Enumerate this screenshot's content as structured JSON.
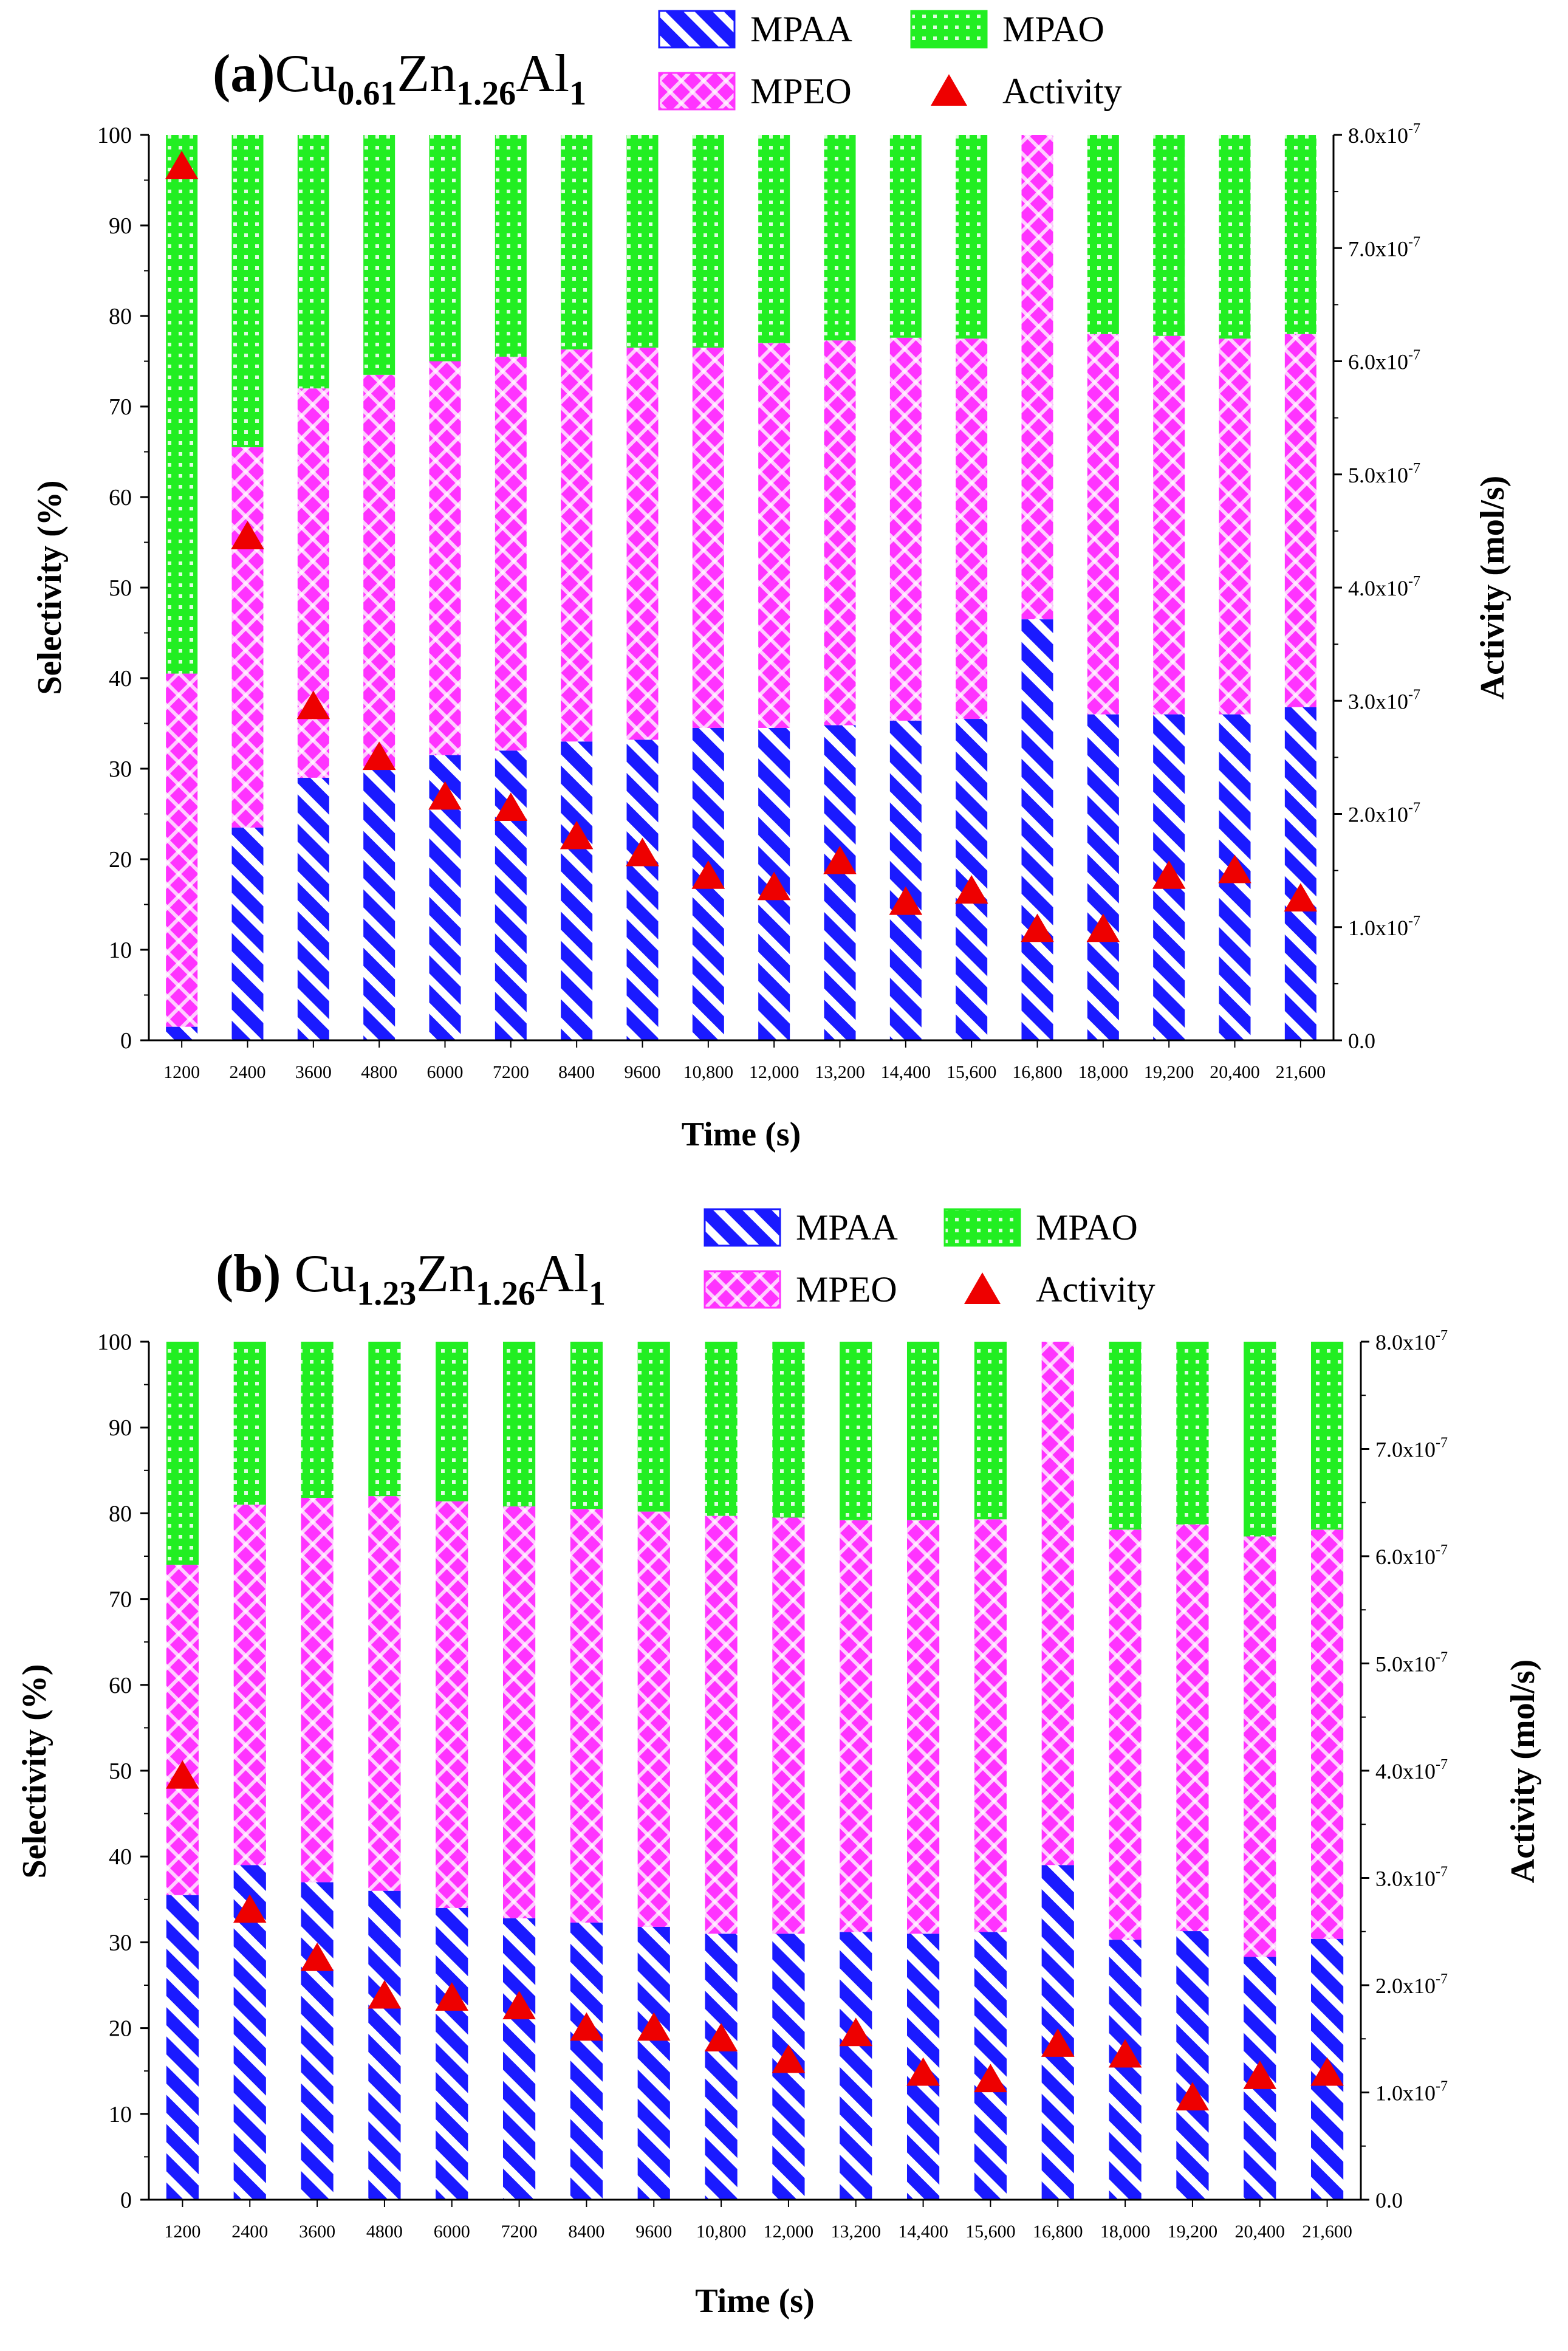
{
  "chart_data": [
    {
      "panel": "(a)",
      "title_parts": [
        {
          "t": "(a)",
          "sub": false,
          "bold": true
        },
        {
          "t": "Cu",
          "sub": false
        },
        {
          "t": "0.61",
          "sub": true
        },
        {
          "t": "Zn",
          "sub": false
        },
        {
          "t": "1.26",
          "sub": true
        },
        {
          "t": "Al",
          "sub": false
        },
        {
          "t": "1",
          "sub": true
        }
      ],
      "type": "bar",
      "stacked": true,
      "xlabel": "Time (s)",
      "ylabel": "Selectivity (%)",
      "y2label": "Activity (mol/s)",
      "ylim": [
        0,
        100
      ],
      "y2lim": [
        0,
        8e-07
      ],
      "y_ticks": [
        "0",
        "10",
        "20",
        "30",
        "40",
        "50",
        "60",
        "70",
        "80",
        "90",
        "100"
      ],
      "y2_ticks": [
        {
          "m": "0.0",
          "e": ""
        },
        {
          "m": "1.0x10",
          "e": "-7"
        },
        {
          "m": "2.0x10",
          "e": "-7"
        },
        {
          "m": "3.0x10",
          "e": "-7"
        },
        {
          "m": "4.0x10",
          "e": "-7"
        },
        {
          "m": "5.0x10",
          "e": "-7"
        },
        {
          "m": "6.0x10",
          "e": "-7"
        },
        {
          "m": "7.0x10",
          "e": "-7"
        },
        {
          "m": "8.0x10",
          "e": "-7"
        }
      ],
      "categories": [
        "1200",
        "2400",
        "3600",
        "4800",
        "6000",
        "7200",
        "8400",
        "9600",
        "10,800",
        "12,000",
        "13,200",
        "14,400",
        "15,600",
        "16,800",
        "18,000",
        "19,200",
        "20,400",
        "21,600"
      ],
      "series": [
        {
          "name": "MPAA",
          "color": "#1a1aff",
          "pattern": "hatch",
          "values": [
            1.5,
            23.5,
            29,
            30,
            31.5,
            32,
            33,
            33.2,
            34.5,
            34.5,
            34.8,
            35.3,
            35.5,
            46.5,
            36,
            36,
            36,
            36.8
          ]
        },
        {
          "name": "MPEO",
          "color": "#ff33ff",
          "pattern": "crosshatch",
          "values": [
            39,
            42,
            43,
            43.5,
            43.5,
            43.5,
            43.3,
            43.3,
            42,
            42.5,
            42.5,
            42.3,
            42,
            53.5,
            42,
            41.8,
            41.5,
            41.2
          ]
        },
        {
          "name": "MPAO",
          "color": "#22ee22",
          "pattern": "dots",
          "values": [
            59.5,
            34.5,
            28,
            26.5,
            25,
            24.5,
            23.7,
            23.5,
            23.5,
            23,
            22.7,
            22.4,
            22.5,
            0,
            22,
            22.2,
            22.5,
            22
          ]
        }
      ],
      "activity": {
        "name": "Activity",
        "color": "#ee0000",
        "values": [
          7.72e-07,
          4.45e-07,
          2.95e-07,
          2.5e-07,
          2.15e-07,
          2.05e-07,
          1.8e-07,
          1.65e-07,
          1.45e-07,
          1.35e-07,
          1.58e-07,
          1.22e-07,
          1.32e-07,
          9.8e-08,
          9.8e-08,
          1.45e-07,
          1.5e-07,
          1.25e-07
        ]
      },
      "legend": {
        "placement": "top-center",
        "entries": [
          "MPAA",
          "MPAO",
          "MPEO",
          "Activity"
        ]
      }
    },
    {
      "panel": "(b)",
      "title_parts": [
        {
          "t": "(b) ",
          "sub": false,
          "bold": true
        },
        {
          "t": "Cu",
          "sub": false
        },
        {
          "t": "1.23",
          "sub": true
        },
        {
          "t": "Zn",
          "sub": false
        },
        {
          "t": "1.26",
          "sub": true
        },
        {
          "t": "Al",
          "sub": false
        },
        {
          "t": "1",
          "sub": true
        }
      ],
      "type": "bar",
      "stacked": true,
      "xlabel": "Time (s)",
      "ylabel": "Selectivity (%)",
      "y2label": "Activity (mol/s)",
      "ylim": [
        0,
        100
      ],
      "y2lim": [
        0,
        8e-07
      ],
      "y_ticks": [
        "0",
        "10",
        "20",
        "30",
        "40",
        "50",
        "60",
        "70",
        "80",
        "90",
        "100"
      ],
      "y2_ticks": [
        {
          "m": "0.0",
          "e": ""
        },
        {
          "m": "1.0x10",
          "e": "-7"
        },
        {
          "m": "2.0x10",
          "e": "-7"
        },
        {
          "m": "3.0x10",
          "e": "-7"
        },
        {
          "m": "4.0x10",
          "e": "-7"
        },
        {
          "m": "5.0x10",
          "e": "-7"
        },
        {
          "m": "6.0x10",
          "e": "-7"
        },
        {
          "m": "7.0x10",
          "e": "-7"
        },
        {
          "m": "8.0x10",
          "e": "-7"
        }
      ],
      "categories": [
        "1200",
        "2400",
        "3600",
        "4800",
        "6000",
        "7200",
        "8400",
        "9600",
        "10,800",
        "12,000",
        "13,200",
        "14,400",
        "15,600",
        "16,800",
        "18,000",
        "19,200",
        "20,400",
        "21,600"
      ],
      "series": [
        {
          "name": "MPAA",
          "color": "#1a1aff",
          "pattern": "hatch",
          "values": [
            35.5,
            39,
            37,
            36,
            34,
            32.8,
            32.3,
            31.8,
            31,
            31,
            31.2,
            31,
            31.2,
            39,
            30.3,
            31.3,
            28.3,
            30.4
          ]
        },
        {
          "name": "MPEO",
          "color": "#ff33ff",
          "pattern": "crosshatch",
          "values": [
            38.5,
            42,
            44.8,
            46,
            47.4,
            48,
            48.2,
            48.4,
            48.7,
            48.5,
            48,
            48.2,
            48.1,
            61,
            47.8,
            47.4,
            49,
            47.7
          ]
        },
        {
          "name": "MPAO",
          "color": "#22ee22",
          "pattern": "dots",
          "values": [
            26,
            19,
            18.2,
            18,
            18.6,
            19.2,
            19.5,
            19.8,
            20.3,
            20.5,
            20.8,
            20.8,
            20.7,
            0,
            21.9,
            21.3,
            22.7,
            21.9
          ]
        }
      ],
      "activity": {
        "name": "Activity",
        "color": "#ee0000",
        "values": [
          3.95e-07,
          2.7e-07,
          2.25e-07,
          1.9e-07,
          1.88e-07,
          1.8e-07,
          1.6e-07,
          1.6e-07,
          1.5e-07,
          1.3e-07,
          1.55e-07,
          1.18e-07,
          1.12e-07,
          1.45e-07,
          1.35e-07,
          9.5e-08,
          1.15e-07,
          1.18e-07
        ]
      },
      "legend": {
        "placement": "top-center",
        "entries": [
          "MPAA",
          "MPAO",
          "MPEO",
          "Activity"
        ]
      }
    }
  ]
}
